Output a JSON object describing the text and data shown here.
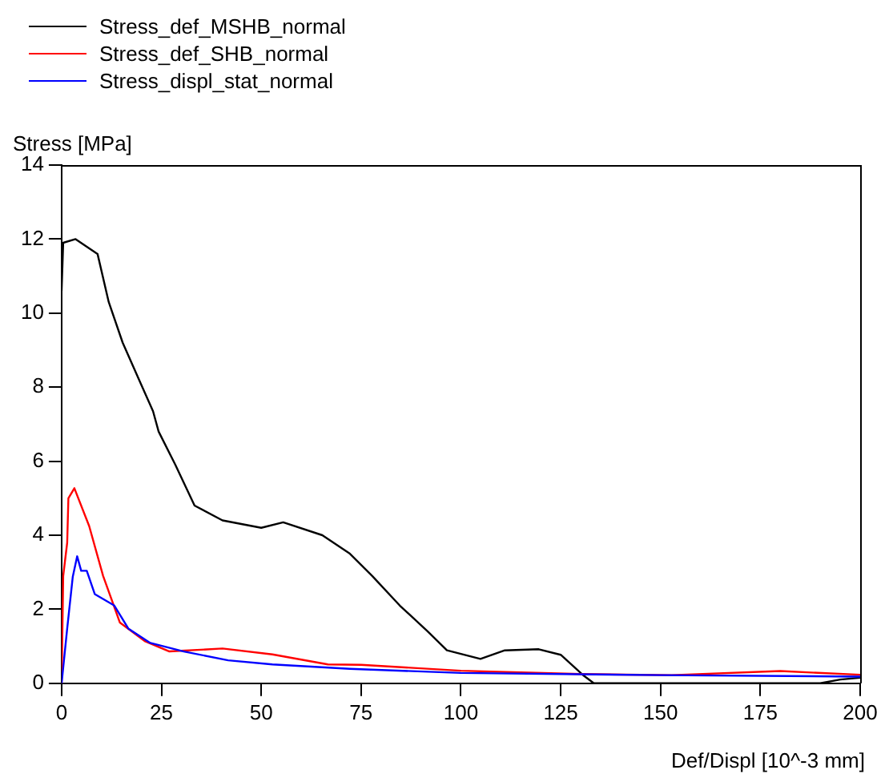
{
  "chart_data": {
    "type": "line",
    "xlabel": "Def/Displ [10^-3 mm]",
    "ylabel": "Stress [MPa]",
    "xlim": [
      0,
      200
    ],
    "xticks": [
      0,
      25,
      50,
      75,
      100,
      125,
      150,
      175,
      200
    ],
    "ylim": [
      0,
      14
    ],
    "yticks": [
      0,
      2,
      4,
      6,
      8,
      10,
      12,
      14
    ],
    "grid": false,
    "legend": "top left",
    "marker": "none",
    "line_style": "solid",
    "series": [
      {
        "name": "Stress_def_MSHB_normal",
        "color": "#000000",
        "x": [
          0,
          0.4,
          3.5,
          9,
          11.8,
          15.3,
          19.4,
          22.9,
          24.3,
          28.5,
          33.3,
          40.3,
          50,
          55.5,
          65.3,
          72.2,
          77.8,
          84.7,
          91.7,
          96.5,
          104.9,
          111,
          119.5,
          125,
          130.5,
          133.3,
          150,
          175,
          190,
          195,
          200
        ],
        "values": [
          10.6,
          11.9,
          12.0,
          11.6,
          10.3,
          9.2,
          8.2,
          7.35,
          6.8,
          5.9,
          4.8,
          4.4,
          4.2,
          4.35,
          4.0,
          3.5,
          2.9,
          2.1,
          1.4,
          0.89,
          0.66,
          0.89,
          0.92,
          0.77,
          0.23,
          0,
          0,
          0,
          0,
          0.1,
          0.15
        ]
      },
      {
        "name": "Stress_def_SHB_normal",
        "color": "#ff0000",
        "x": [
          0,
          0.4,
          1.4,
          1.7,
          3.2,
          6.9,
          10.4,
          14.6,
          20.8,
          27,
          40.3,
          52.8,
          66.7,
          75,
          100,
          130,
          152.8,
          180,
          200
        ],
        "values": [
          0,
          2.9,
          3.8,
          5.0,
          5.27,
          4.25,
          2.9,
          1.64,
          1.14,
          0.86,
          0.94,
          0.78,
          0.51,
          0.5,
          0.34,
          0.25,
          0.22,
          0.33,
          0.23
        ]
      },
      {
        "name": "Stress_displ_stat_normal",
        "color": "#0000ff",
        "x": [
          0,
          1.4,
          2.8,
          3.9,
          4.9,
          6.3,
          8.3,
          13.2,
          16.7,
          22.2,
          30.6,
          41.7,
          52.8,
          72.2,
          100,
          150,
          200
        ],
        "values": [
          0,
          1.48,
          2.88,
          3.43,
          3.04,
          3.04,
          2.41,
          2.1,
          1.48,
          1.09,
          0.86,
          0.62,
          0.51,
          0.39,
          0.28,
          0.22,
          0.18
        ]
      }
    ]
  }
}
